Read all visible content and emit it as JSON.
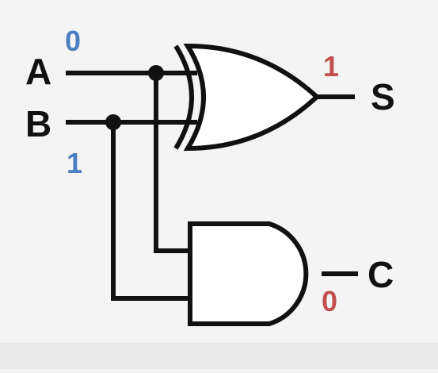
{
  "diagram": {
    "inputs": [
      {
        "label": "A",
        "value": "0"
      },
      {
        "label": "B",
        "value": "1"
      }
    ],
    "outputs": [
      {
        "label": "S",
        "value": "1"
      },
      {
        "label": "C",
        "value": "0"
      }
    ],
    "gates": [
      {
        "type": "XOR",
        "inputs": [
          "A",
          "B"
        ],
        "output": "S"
      },
      {
        "type": "AND",
        "inputs": [
          "A",
          "B"
        ],
        "output": "C"
      }
    ],
    "colors": {
      "input_value": "#4a7fbf",
      "output_value": "#c0504d",
      "wire": "#111111",
      "label": "#111111"
    }
  }
}
